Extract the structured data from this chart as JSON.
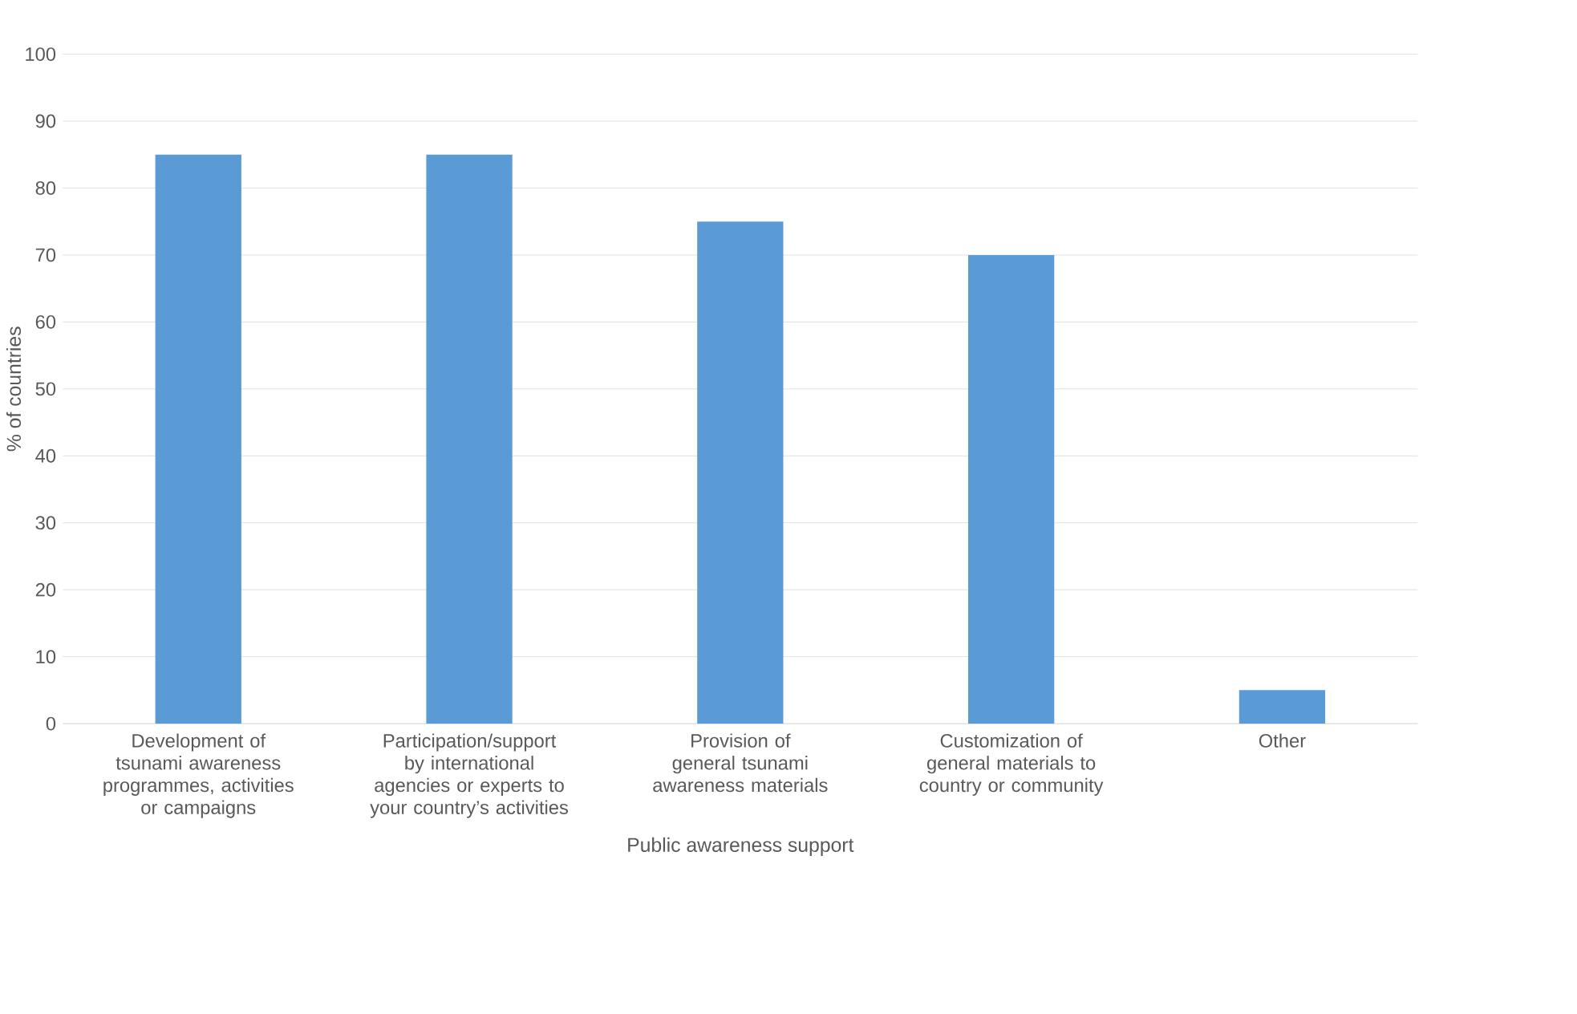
{
  "chart_data": {
    "type": "bar",
    "xlabel": "Public awareness support",
    "ylabel": "% of countries",
    "categories": [
      "Development of tsunami awareness programmes, activities or campaigns",
      "Participation/support by international agencies or experts to your country’s activities",
      "Provision of general tsunami awareness materials",
      "Customization of general materials to country or community",
      "Other"
    ],
    "values": [
      85,
      85,
      75,
      70,
      5
    ],
    "color": "#5b9bd5",
    "ylim": [
      0,
      100
    ],
    "yticks": [
      0,
      10,
      20,
      30,
      40,
      50,
      60,
      70,
      80,
      90,
      100
    ],
    "grid": "y"
  }
}
